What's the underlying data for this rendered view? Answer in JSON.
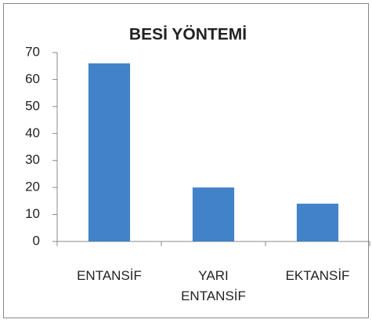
{
  "chart_data": {
    "type": "bar",
    "title": "BESİ YÖNTEMİ",
    "categories": [
      "ENTANSİF",
      "YARI ENTANSİF",
      "EKTANSİF"
    ],
    "values": [
      66,
      20,
      14
    ],
    "color": "#4282c8",
    "ylim": [
      0,
      70
    ],
    "yticks": [
      0,
      10,
      20,
      30,
      40,
      50,
      60,
      70
    ],
    "grid": false
  }
}
